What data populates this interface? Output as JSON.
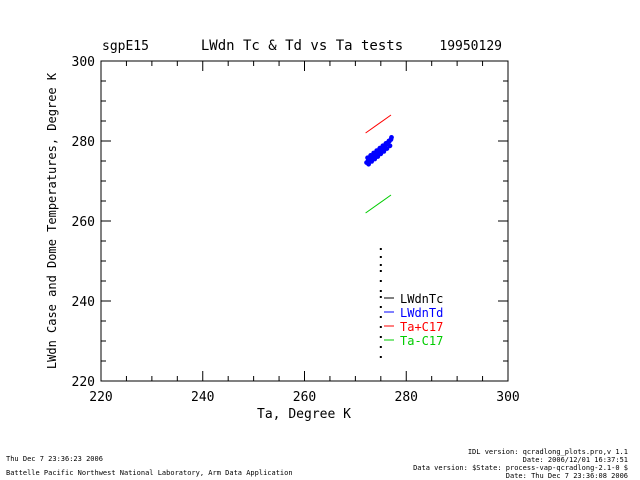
{
  "chart_data": {
    "type": "scatter",
    "station": "sgpE15",
    "title": "LWdn Tc & Td vs Ta tests",
    "date": "19950129",
    "xlabel": "Ta, Degree K",
    "ylabel": "LWdn Case and Dome Temperatures, Degree K",
    "xlim": [
      220,
      300
    ],
    "ylim": [
      220,
      300
    ],
    "x_ticks": [
      220,
      240,
      260,
      280,
      300
    ],
    "y_ticks": [
      220,
      240,
      260,
      280,
      300
    ],
    "x_tick_labels": [
      "220",
      "240",
      "260",
      "280",
      "300"
    ],
    "y_tick_labels": [
      "220",
      "240",
      "260",
      "280",
      "300"
    ],
    "x_minor_step": 5,
    "y_minor_step": 5,
    "grid": false,
    "legend_position": "bottom-right",
    "series": [
      {
        "name": "LWdnTc",
        "color": "#000000",
        "points": [
          [
            275.0,
            253.0
          ],
          [
            275.0,
            251.0
          ],
          [
            275.0,
            249.0
          ],
          [
            275.0,
            247.5
          ],
          [
            275.0,
            245.0
          ],
          [
            275.0,
            242.5
          ],
          [
            275.0,
            241.0
          ],
          [
            275.0,
            238.5
          ],
          [
            275.0,
            236.0
          ],
          [
            275.0,
            233.5
          ],
          [
            275.0,
            231.0
          ],
          [
            275.0,
            228.5
          ],
          [
            275.0,
            226.0
          ]
        ]
      },
      {
        "name": "LWdnTd",
        "color": "#0000ff",
        "points": [
          [
            272.2,
            274.6
          ],
          [
            272.5,
            275.0
          ],
          [
            272.8,
            275.3
          ],
          [
            273.1,
            275.6
          ],
          [
            273.4,
            276.0
          ],
          [
            273.7,
            276.3
          ],
          [
            274.0,
            276.6
          ],
          [
            274.3,
            277.0
          ],
          [
            274.6,
            277.4
          ],
          [
            274.9,
            277.7
          ],
          [
            275.2,
            278.1
          ],
          [
            275.5,
            278.4
          ],
          [
            275.8,
            278.8
          ],
          [
            276.1,
            279.2
          ],
          [
            276.4,
            279.6
          ],
          [
            276.7,
            280.0
          ],
          [
            277.0,
            280.4
          ],
          [
            272.4,
            275.8
          ],
          [
            273.0,
            276.4
          ],
          [
            273.6,
            277.0
          ],
          [
            274.2,
            277.6
          ],
          [
            274.8,
            278.2
          ],
          [
            275.4,
            278.8
          ],
          [
            276.0,
            279.4
          ],
          [
            276.6,
            280.0
          ],
          [
            277.1,
            280.9
          ],
          [
            272.6,
            274.2
          ],
          [
            273.2,
            274.9
          ],
          [
            273.8,
            275.5
          ],
          [
            274.4,
            276.1
          ],
          [
            275.0,
            276.8
          ],
          [
            275.6,
            277.4
          ],
          [
            276.2,
            278.1
          ],
          [
            276.8,
            278.8
          ]
        ]
      },
      {
        "name": "Ta+C17",
        "color": "#ff0000",
        "points": [
          [
            272.0,
            282.0
          ],
          [
            277.0,
            286.5
          ]
        ]
      },
      {
        "name": "Ta-C17",
        "color": "#00cc00",
        "points": [
          [
            272.0,
            262.0
          ],
          [
            277.0,
            266.5
          ]
        ]
      }
    ]
  },
  "footer": {
    "run_timestamp": "Thu Dec  7 23:36:23 2006",
    "organization": "Battelle Pacific Northwest National Laboratory, Arm Data Application",
    "idl_version": "IDL version: qcradlong_plots.pro,v 1.1",
    "file_date": "Date: 2006/12/01 16:37:51",
    "data_version": "Data version: $State: process-vap-qcradlong-2.1-0 $",
    "run_date": "Date: Thu Dec  7 23:36:08 2006"
  }
}
